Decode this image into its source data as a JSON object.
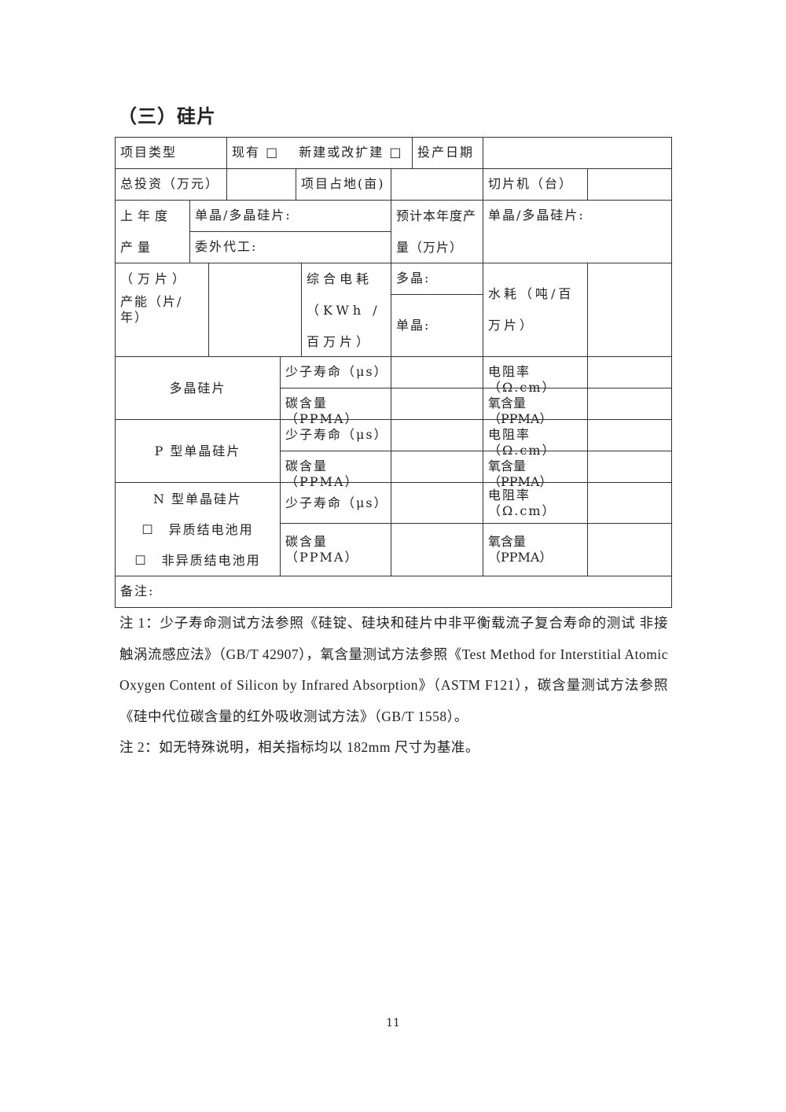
{
  "section_title": "（三）硅片",
  "table": {
    "project_type": "项目类型",
    "project_type_options": "现有 □　 新建或改扩建 □",
    "production_date": "投产日期",
    "total_investment": "总投资（万元）",
    "land_area": "项目占地(亩)",
    "slicer": "切片机（台）",
    "last_year_output": "上年度产量（万片）",
    "mono_poly_wafer": "单晶/多晶硅片:",
    "outsourced": "委外代工:",
    "expected_output": "预计本年度产量（万片）",
    "mono_poly_wafer_2": "单晶/多晶硅片:",
    "capacity": "产能（片/年）",
    "power": "综合电耗（KWh /百万片）",
    "poly": "多晶:",
    "mono": "单晶:",
    "water": "水耗（吨/百万片）",
    "groups": [
      {
        "label": "多晶硅片",
        "p1": "少子寿命（μs）",
        "p2": "碳含量（PPMA）",
        "p3": "电阻率（Ω.cm）",
        "p4": "氧含量（PPMA）"
      },
      {
        "label": "P 型单晶硅片",
        "p1": "少子寿命（μs）",
        "p2": "碳含量（PPMA）",
        "p3": "电阻率（Ω.cm）",
        "p4": "氧含量（PPMA）"
      },
      {
        "label": "N 型单晶硅片",
        "opt1": "☐　异质结电池用",
        "opt2": "☐　非异质结电池用",
        "p1": "少子寿命（μs）",
        "p2": "碳含量（PPMA）",
        "p3": "电阻率（Ω.cm）",
        "p4": "氧含量（PPMA）"
      }
    ],
    "remarks": "备注:"
  },
  "notes": [
    "注 1：少子寿命测试方法参照《硅锭、硅块和硅片中非平衡载流子复合寿命的测试 非接触涡流感应法》（GB/T 42907），氧含量测试方法参照《Test Method for Interstitial Atomic Oxygen Content of Silicon by Infrared Absorption》（ASTM F121），碳含量测试方法参照《硅中代位碳含量的红外吸收测试方法》（GB/T 1558）。",
    "注 2：如无特殊说明，相关指标均以 182mm 尺寸为基准。"
  ],
  "page_number": "11"
}
